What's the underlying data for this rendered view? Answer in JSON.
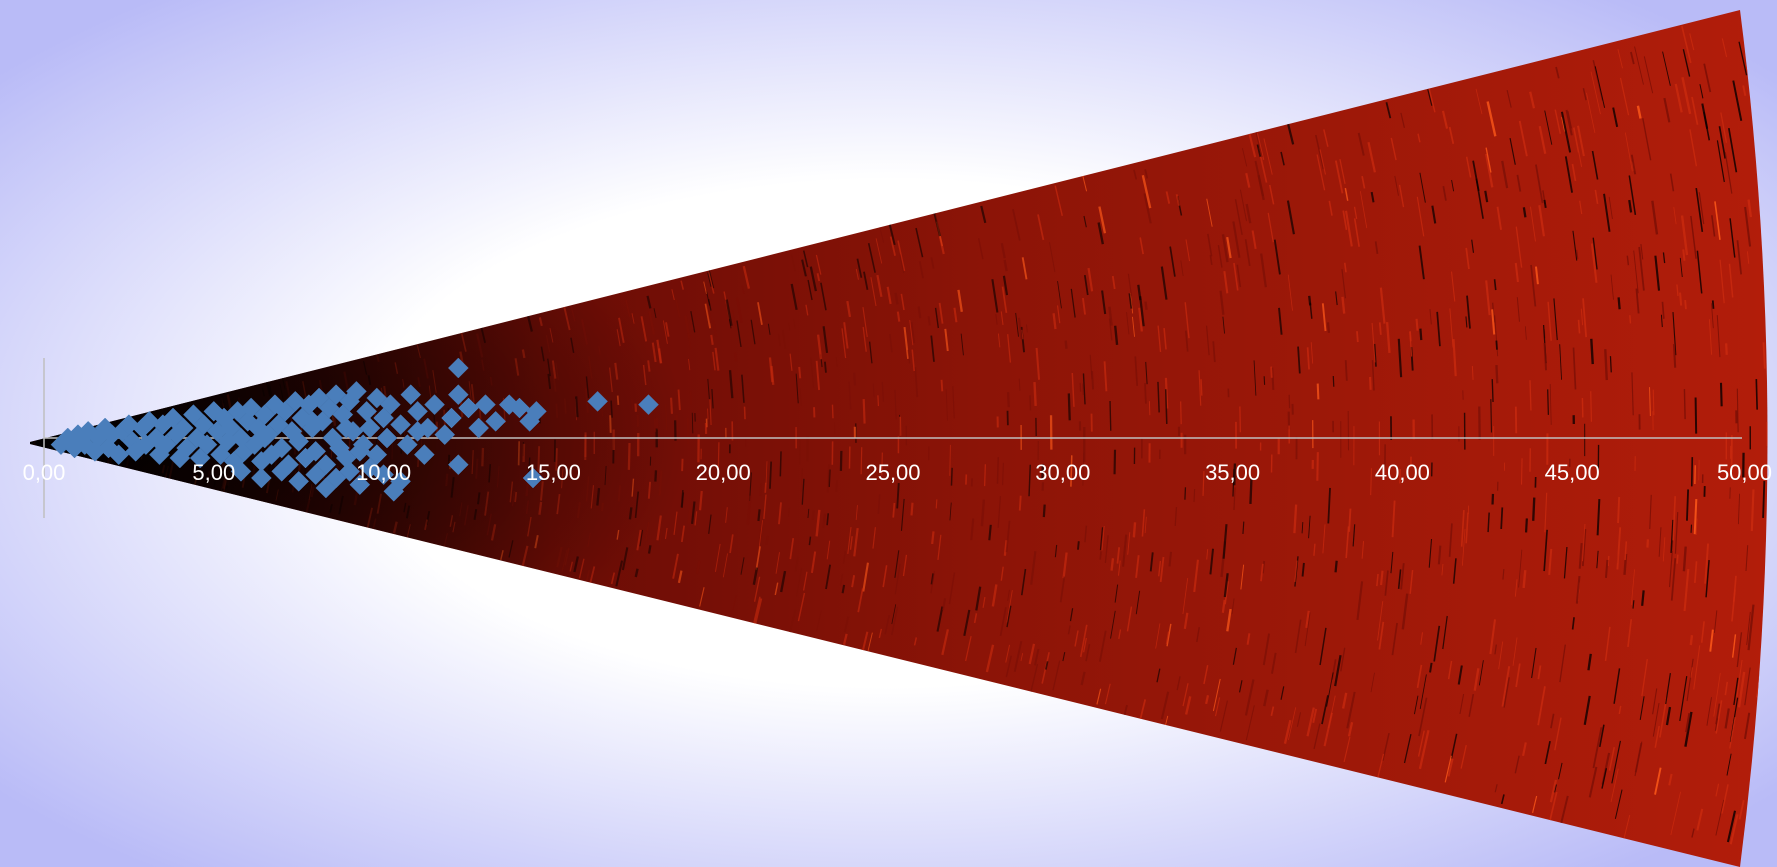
{
  "colors": {
    "background_center": "#ffffff",
    "background_edge": "#b9bbf7",
    "sonar_dark": "#0d0101",
    "sonar_mid": "#7a0f06",
    "sonar_bright": "#c92a0f",
    "highlight": "#ff5a1a",
    "marker": "#4a7ebb",
    "axis": "#bfbfbf",
    "tick_text": "#ffffff"
  },
  "chart_data": {
    "type": "scatter",
    "title": "",
    "xlabel": "",
    "ylabel": "",
    "x_ticks": [
      "0,00",
      "5,00",
      "10,00",
      "15,00",
      "20,00",
      "25,00",
      "30,00",
      "35,00",
      "40,00",
      "45,00",
      "50,00"
    ],
    "xlim": [
      0,
      50
    ],
    "ylim": [
      -2.4,
      2.4
    ],
    "grid": false,
    "legend": "none",
    "marker": "diamond",
    "background": "sonar fan image",
    "series": [
      {
        "points": [
          [
            0.5,
            -0.2
          ],
          [
            0.7,
            0.0
          ],
          [
            0.9,
            -0.3
          ],
          [
            1.0,
            0.1
          ],
          [
            1.2,
            -0.2
          ],
          [
            1.3,
            0.2
          ],
          [
            1.5,
            -0.4
          ],
          [
            1.6,
            0.0
          ],
          [
            1.8,
            0.3
          ],
          [
            1.9,
            -0.3
          ],
          [
            2.0,
            0.1
          ],
          [
            2.2,
            -0.5
          ],
          [
            2.3,
            0.2
          ],
          [
            2.5,
            0.4
          ],
          [
            2.6,
            -0.1
          ],
          [
            2.7,
            -0.4
          ],
          [
            2.9,
            0.3
          ],
          [
            3.0,
            -0.2
          ],
          [
            3.1,
            0.5
          ],
          [
            3.3,
            0.0
          ],
          [
            3.4,
            -0.5
          ],
          [
            3.5,
            0.4
          ],
          [
            3.6,
            -0.2
          ],
          [
            3.8,
            0.6
          ],
          [
            3.9,
            0.1
          ],
          [
            4.0,
            -0.6
          ],
          [
            4.1,
            0.3
          ],
          [
            4.2,
            -0.3
          ],
          [
            4.4,
            0.7
          ],
          [
            4.5,
            0.0
          ],
          [
            4.6,
            -0.6
          ],
          [
            4.7,
            0.4
          ],
          [
            4.8,
            -0.2
          ],
          [
            5.0,
            0.8
          ],
          [
            5.1,
            0.2
          ],
          [
            5.2,
            -0.5
          ],
          [
            5.3,
            0.6
          ],
          [
            5.4,
            -0.1
          ],
          [
            5.5,
            0.3
          ],
          [
            5.6,
            -0.7
          ],
          [
            5.7,
            0.8
          ],
          [
            5.8,
            0.0
          ],
          [
            5.9,
            -0.4
          ],
          [
            6.0,
            0.5
          ],
          [
            6.1,
            0.9
          ],
          [
            6.2,
            -0.2
          ],
          [
            6.3,
            0.3
          ],
          [
            6.4,
            -0.7
          ],
          [
            6.5,
            0.7
          ],
          [
            6.6,
            0.1
          ],
          [
            6.7,
            -0.5
          ],
          [
            6.8,
            1.0
          ],
          [
            6.9,
            0.4
          ],
          [
            7.0,
            -0.3
          ],
          [
            7.1,
            0.8
          ],
          [
            7.2,
            -0.8
          ],
          [
            7.3,
            0.2
          ],
          [
            7.4,
            1.1
          ],
          [
            7.5,
            -0.1
          ],
          [
            7.6,
            0.6
          ],
          [
            7.7,
            -0.6
          ],
          [
            7.8,
            1.0
          ],
          [
            7.9,
            0.3
          ],
          [
            8.0,
            -0.4
          ],
          [
            8.1,
            1.2
          ],
          [
            8.2,
            0.5
          ],
          [
            8.3,
            -0.8
          ],
          [
            8.4,
            0.9
          ],
          [
            8.5,
            0.0
          ],
          [
            8.6,
            1.3
          ],
          [
            8.7,
            -0.3
          ],
          [
            8.8,
            0.7
          ],
          [
            8.9,
            -0.6
          ],
          [
            9.0,
            1.1
          ],
          [
            9.1,
            0.2
          ],
          [
            9.2,
            1.4
          ],
          [
            9.3,
            -0.4
          ],
          [
            9.5,
            0.8
          ],
          [
            9.6,
            0.3
          ],
          [
            9.8,
            1.2
          ],
          [
            10.0,
            0.6
          ],
          [
            10.2,
            1.0
          ],
          [
            10.5,
            0.4
          ],
          [
            10.8,
            1.3
          ],
          [
            11.0,
            0.8
          ],
          [
            11.3,
            0.3
          ],
          [
            11.5,
            1.0
          ],
          [
            11.8,
            0.1
          ],
          [
            12.0,
            0.6
          ],
          [
            12.2,
            1.3
          ],
          [
            12.5,
            0.9
          ],
          [
            12.8,
            0.3
          ],
          [
            13.0,
            1.0
          ],
          [
            13.3,
            0.5
          ],
          [
            13.7,
            1.0
          ],
          [
            14.0,
            0.9
          ],
          [
            14.3,
            0.5
          ],
          [
            14.5,
            0.8
          ],
          [
            12.2,
            2.1
          ],
          [
            16.3,
            1.1
          ],
          [
            17.8,
            1.0
          ],
          [
            7.0,
            -1.0
          ],
          [
            7.5,
            -1.3
          ],
          [
            8.0,
            -1.1
          ],
          [
            8.3,
            -1.5
          ],
          [
            8.6,
            -1.2
          ],
          [
            9.0,
            -1.0
          ],
          [
            9.3,
            -1.4
          ],
          [
            9.6,
            -0.9
          ],
          [
            10.0,
            -1.1
          ],
          [
            10.3,
            -1.6
          ],
          [
            10.5,
            -1.3
          ],
          [
            12.2,
            -0.8
          ],
          [
            14.4,
            -1.2
          ],
          [
            6.4,
            -1.2
          ],
          [
            5.8,
            -1.0
          ],
          [
            9.8,
            -0.5
          ],
          [
            10.7,
            -0.2
          ],
          [
            11.2,
            -0.5
          ],
          [
            10.1,
            0.0
          ],
          [
            9.4,
            -0.2
          ],
          [
            6.5,
            0.0
          ],
          [
            7.9,
            0.5
          ],
          [
            8.9,
            0.3
          ],
          [
            11.0,
            0.2
          ]
        ]
      }
    ]
  }
}
